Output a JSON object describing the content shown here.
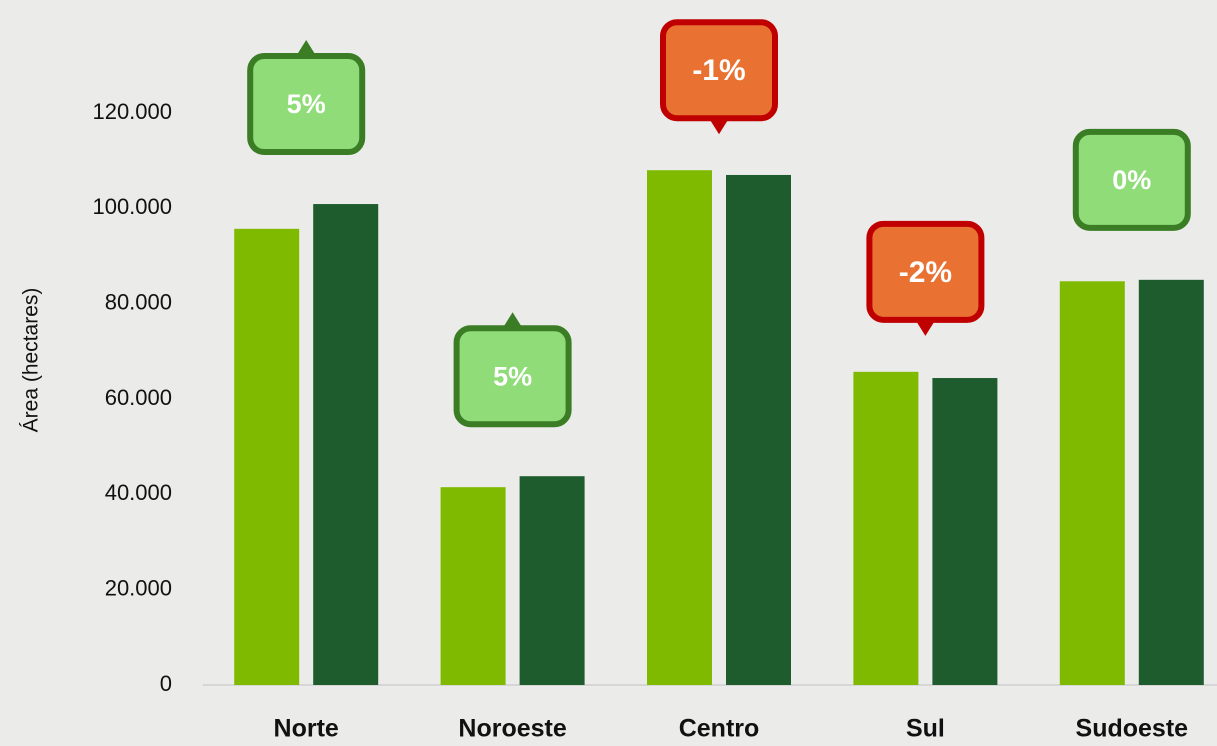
{
  "chart_data": {
    "type": "bar",
    "y_label": "Área (hectares)",
    "categories": [
      "Norte",
      "Noroeste",
      "Centro",
      "Sul",
      "Sudoeste"
    ],
    "series": [
      {
        "color": "#7fba00",
        "values": [
          95700,
          41500,
          108000,
          65700,
          84700
        ]
      },
      {
        "color": "#1e5c2e",
        "values": [
          100900,
          43800,
          107000,
          64400,
          85000
        ]
      }
    ],
    "change": {
      "values": [
        5,
        5,
        -1,
        -2,
        0
      ],
      "value_labels": [
        "5%",
        "5%",
        "-1%",
        "-2%",
        "0%"
      ],
      "up_color": "#8fdc78",
      "up_border": "#3a7d24",
      "down_color": "#e97132",
      "down_border": "#c00000"
    },
    "ylim": [
      0,
      120000
    ],
    "yticks": [
      0,
      {
        "value": 20000,
        "label": "20.000"
      },
      {
        "value": 40000,
        "label": "40.000"
      },
      {
        "value": 60000,
        "label": "60.000"
      },
      {
        "value": 80000,
        "label": "80.000"
      },
      {
        "value": 100000,
        "label": "100.000"
      },
      {
        "value": 120000,
        "label": "120.000"
      }
    ],
    "grid": false
  }
}
